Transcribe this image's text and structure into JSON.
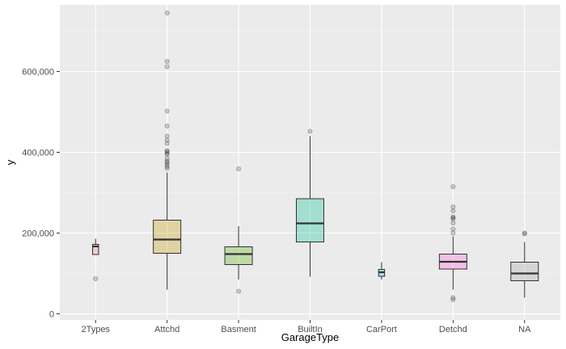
{
  "chart_data": {
    "type": "box",
    "title": "",
    "xlabel": "GarageType",
    "ylabel": "y",
    "ylim": [
      -15000,
      765000
    ],
    "yticks": [
      {
        "value": 0,
        "label": "0"
      },
      {
        "value": 200000,
        "label": "200,000"
      },
      {
        "value": 400000,
        "label": "400,000"
      },
      {
        "value": 600000,
        "label": "600,000"
      }
    ],
    "grid": true,
    "legend": "none",
    "categories": [
      "2Types",
      "Attchd",
      "Basment",
      "BuiltIn",
      "CarPort",
      "Detchd",
      "NA"
    ],
    "boxes": [
      {
        "category": "2Types",
        "whisker_low": 147000,
        "q1": 147000,
        "median": 167000,
        "q3": 172000,
        "whisker_high": 186000,
        "outliers": [
          87000
        ],
        "color": "#f8766d"
      },
      {
        "category": "Attchd",
        "whisker_low": 60000,
        "q1": 150000,
        "median": 184000,
        "q3": 232000,
        "whisker_high": 350000,
        "outliers": [
          360000,
          365000,
          370000,
          375000,
          378000,
          385000,
          395000,
          398000,
          402000,
          404000,
          422000,
          430000,
          440000,
          465000,
          502000,
          612000,
          625000,
          745000
        ],
        "color": "#c49a00"
      },
      {
        "category": "Basment",
        "whisker_low": 85000,
        "q1": 122000,
        "median": 148000,
        "q3": 166000,
        "whisker_high": 217000,
        "outliers": [
          56000,
          359000
        ],
        "color": "#53b400"
      },
      {
        "category": "BuiltIn",
        "whisker_low": 92000,
        "q1": 178000,
        "median": 224000,
        "q3": 285000,
        "whisker_high": 440000,
        "outliers": [
          452000
        ],
        "color": "#00c094"
      },
      {
        "category": "CarPort",
        "whisker_low": 85000,
        "q1": 93000,
        "median": 103000,
        "q3": 110000,
        "whisker_high": 128000,
        "outliers": [],
        "color": "#00b6eb"
      },
      {
        "category": "Detchd",
        "whisker_low": 60000,
        "q1": 111000,
        "median": 129000,
        "q3": 148000,
        "whisker_high": 192000,
        "outliers": [
          35000,
          40000,
          200000,
          210000,
          225000,
          235000,
          238000,
          240000,
          255000,
          265000,
          315000
        ],
        "color": "#fb61d7"
      },
      {
        "category": "NA",
        "whisker_low": 40000,
        "q1": 82000,
        "median": 100000,
        "q3": 128000,
        "whisker_high": 178000,
        "outliers": [
          198000,
          200000
        ],
        "color": "#a3a3a3"
      }
    ]
  }
}
